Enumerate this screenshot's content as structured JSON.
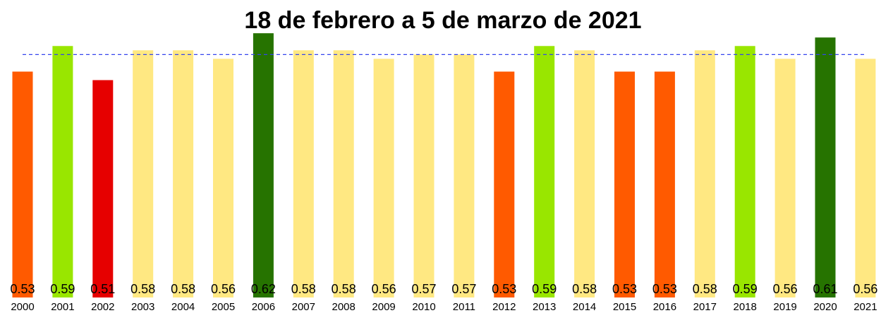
{
  "chart_data": {
    "type": "bar",
    "title": "18 de febrero a 5 de marzo de 2021",
    "categories": [
      "2000",
      "2001",
      "2002",
      "2003",
      "2004",
      "2005",
      "2006",
      "2007",
      "2008",
      "2009",
      "2010",
      "2011",
      "2012",
      "2013",
      "2014",
      "2015",
      "2016",
      "2017",
      "2018",
      "2019",
      "2020",
      "2021"
    ],
    "values": [
      0.53,
      0.59,
      0.51,
      0.58,
      0.58,
      0.56,
      0.62,
      0.58,
      0.58,
      0.56,
      0.57,
      0.57,
      0.53,
      0.59,
      0.58,
      0.53,
      0.53,
      0.58,
      0.59,
      0.56,
      0.61,
      0.56
    ],
    "colors": [
      "#ff5a00",
      "#99e600",
      "#e60000",
      "#ffe882",
      "#ffe882",
      "#ffe882",
      "#267300",
      "#ffe882",
      "#ffe882",
      "#ffe882",
      "#ffe882",
      "#ffe882",
      "#ff5a00",
      "#99e600",
      "#ffe882",
      "#ff5a00",
      "#ff5a00",
      "#ffe882",
      "#99e600",
      "#ffe882",
      "#267300",
      "#ffe882"
    ],
    "reference_line": 0.57,
    "reference_color": "#3344ee",
    "ylim": [
      0,
      0.65
    ]
  }
}
